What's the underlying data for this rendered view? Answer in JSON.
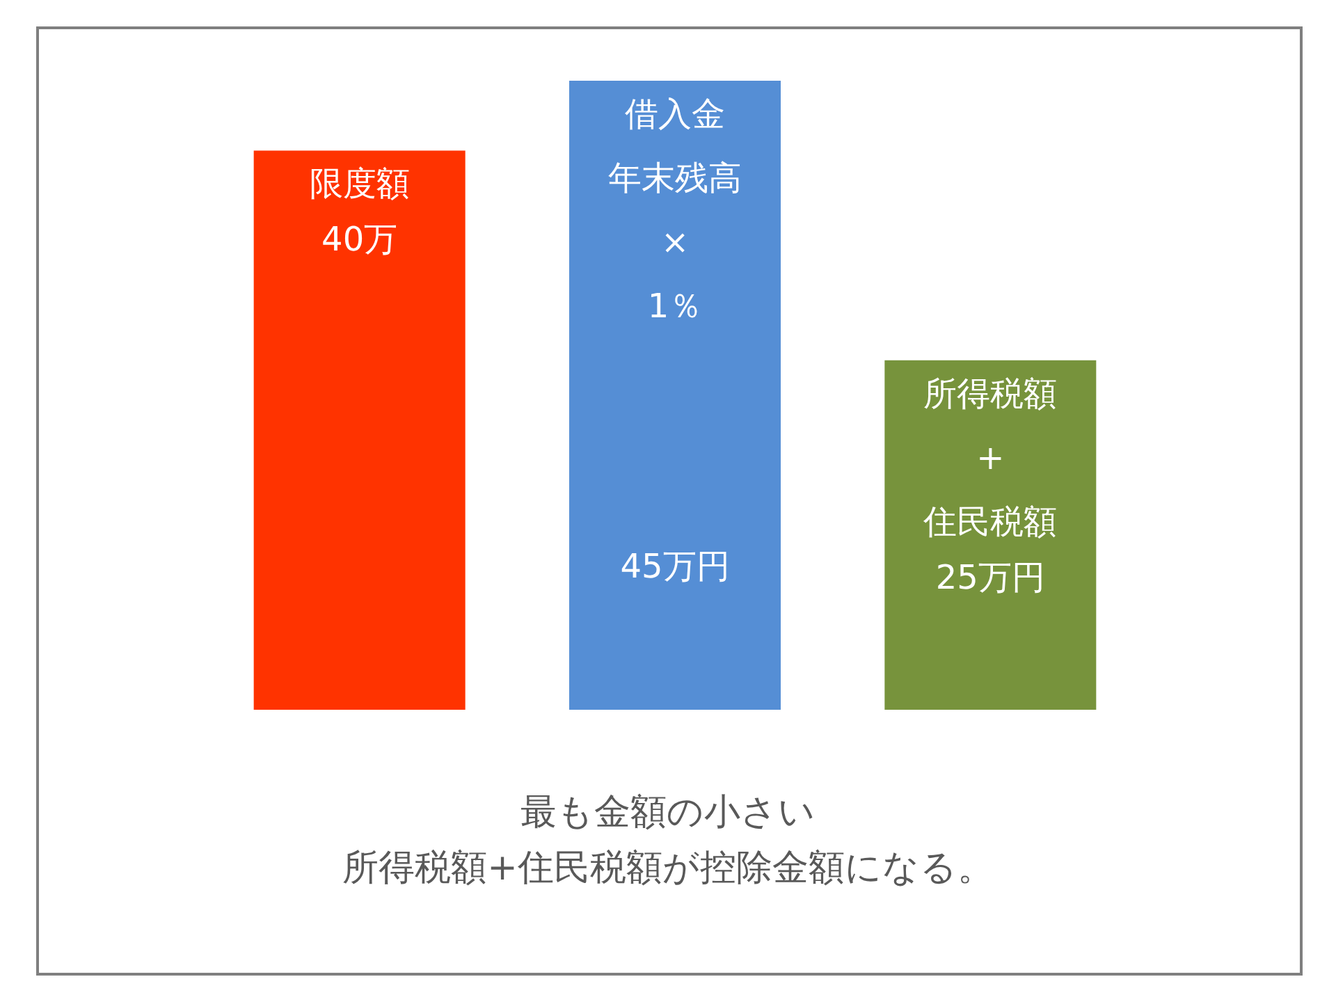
{
  "chart_data": {
    "type": "bar",
    "categories": [
      "限度額",
      "借入金年末残高\n×\n1％",
      "所得税額\n+\n住民税額"
    ],
    "values": [
      40,
      45,
      25
    ],
    "value_labels": [
      "40万",
      "45万円",
      "25万円"
    ],
    "colors": [
      "#ff3300",
      "#558ed5",
      "#77933c"
    ],
    "annotations": [
      "最も金額の小さい",
      "所得税額+住民税額が控除金額になる。"
    ]
  }
}
